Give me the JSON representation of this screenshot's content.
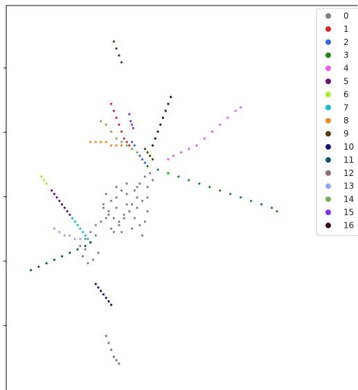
{
  "chart_data": {
    "type": "scatter",
    "title": "",
    "xlabel": "",
    "ylabel": "",
    "xlim": [
      0,
      100
    ],
    "ylim": [
      0,
      100
    ],
    "grid": false,
    "legend_placement": "top-right",
    "ytick_count": 5,
    "series": [
      {
        "name": "0",
        "color": "#7f7f7f",
        "x": [
          34,
          36,
          38,
          40,
          42,
          44,
          46,
          48,
          50,
          35,
          37,
          39,
          41,
          43,
          45,
          47,
          49,
          33,
          36,
          40,
          44,
          48,
          50,
          46,
          42,
          38,
          32,
          30,
          28,
          26,
          25,
          27,
          29,
          31,
          24,
          26,
          28,
          30,
          34,
          38,
          42,
          46,
          50,
          52,
          51,
          49,
          47,
          45,
          43,
          41,
          39,
          37,
          35,
          33
        ],
        "y": [
          50,
          48,
          49,
          51,
          50,
          47,
          46,
          48,
          49,
          44,
          43,
          42,
          44,
          45,
          43,
          41,
          42,
          46,
          40,
          39,
          40,
          38,
          45,
          52,
          53,
          52,
          42,
          38,
          36,
          34,
          32,
          30,
          31,
          33,
          35,
          37,
          39,
          41,
          43,
          46,
          47,
          49,
          52,
          54,
          56,
          55,
          53,
          51,
          45,
          43,
          41,
          39,
          45,
          47
        ]
      },
      {
        "name": "1",
        "color": "#d62728",
        "x": [
          36,
          37,
          38,
          39,
          40,
          41,
          42,
          43,
          44
        ],
        "y": [
          76,
          74,
          72,
          70,
          68,
          66,
          65,
          64,
          63
        ]
      },
      {
        "name": "2",
        "color": "#2f6be0",
        "x": [
          44,
          45,
          46,
          47,
          48,
          49,
          50
        ],
        "y": [
          65,
          64,
          62,
          61,
          60,
          59,
          58
        ]
      },
      {
        "name": "3",
        "color": "#1a8a1a",
        "x": [
          50,
          54,
          58,
          62,
          66,
          70,
          74,
          78,
          82,
          86,
          90,
          94,
          98,
          100
        ],
        "y": [
          58,
          57,
          56,
          55,
          54,
          53,
          52,
          51,
          50,
          49,
          48,
          47,
          46,
          45
        ]
      },
      {
        "name": "4",
        "color": "#ee5cee",
        "x": [
          58,
          60,
          63,
          66,
          69,
          72,
          75,
          78,
          81,
          84,
          86
        ],
        "y": [
          60,
          61,
          62,
          63,
          64,
          66,
          68,
          70,
          72,
          74,
          75
        ]
      },
      {
        "name": "5",
        "color": "#6b0f6b",
        "x": [
          13,
          14,
          15,
          16,
          17,
          18,
          19,
          20,
          21
        ],
        "y": [
          51,
          50,
          49,
          48,
          47,
          46,
          45,
          44,
          43
        ]
      },
      {
        "name": "6",
        "color": "#a6f02a",
        "x": [
          9,
          10,
          11
        ],
        "y": [
          55,
          54,
          53
        ]
      },
      {
        "name": "7",
        "color": "#17becf",
        "x": [
          21,
          22,
          23,
          24,
          25,
          26,
          27,
          28
        ],
        "y": [
          43,
          42,
          41,
          40,
          39,
          38,
          37,
          36
        ]
      },
      {
        "name": "8",
        "color": "#f0882a",
        "x": [
          28,
          30,
          32,
          34,
          36,
          38,
          40
        ],
        "y": [
          65,
          65,
          65,
          65,
          64,
          64,
          64
        ]
      },
      {
        "name": "9",
        "color": "#5a3a0a",
        "x": [
          37,
          38,
          39,
          40,
          49,
          50,
          51,
          52
        ],
        "y": [
          94,
          92,
          90,
          88,
          63,
          62,
          61,
          60
        ]
      },
      {
        "name": "10",
        "color": "#151570",
        "x": [
          30,
          31,
          32,
          33,
          34,
          35,
          36
        ],
        "y": [
          24,
          23,
          22,
          21,
          20,
          19,
          18
        ]
      },
      {
        "name": "11",
        "color": "#0a5a5a",
        "x": [
          5,
          8,
          11,
          14,
          17,
          20,
          23,
          26,
          28
        ],
        "y": [
          28,
          29,
          30,
          31,
          32,
          33,
          34,
          35,
          36
        ]
      },
      {
        "name": "12",
        "color": "#8a6a6a",
        "x": [
          34,
          35,
          36,
          37,
          38,
          39
        ],
        "y": [
          9,
          7,
          5,
          3,
          2,
          1
        ]
      },
      {
        "name": "13",
        "color": "#99a3f5",
        "x": [
          14,
          16,
          18,
          20,
          22,
          24
        ],
        "y": [
          40,
          39,
          38,
          38,
          37,
          37
        ]
      },
      {
        "name": "14",
        "color": "#7faa5f",
        "x": [
          32,
          34,
          36,
          38,
          40,
          42,
          44,
          46
        ],
        "y": [
          71,
          70,
          68,
          66,
          65,
          64,
          63,
          62
        ]
      },
      {
        "name": "15",
        "color": "#8a2be2",
        "x": [
          43,
          43.5,
          44,
          44.5
        ],
        "y": [
          73,
          71,
          70,
          69
        ]
      },
      {
        "name": "16",
        "color": "#3a0a1a",
        "x": [
          52,
          53,
          54,
          55,
          56,
          57,
          58,
          59
        ],
        "y": [
          64,
          66,
          68,
          70,
          72,
          74,
          76,
          78
        ]
      }
    ]
  }
}
